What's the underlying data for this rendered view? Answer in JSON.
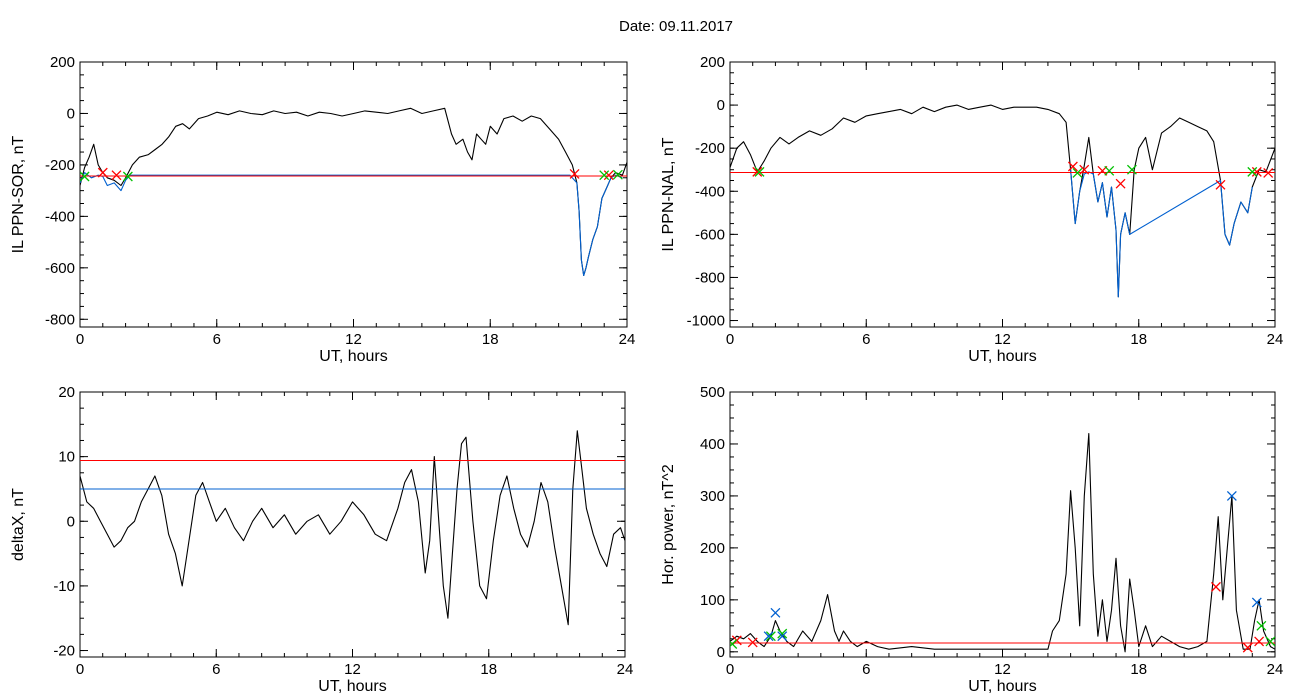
{
  "title": "Date:  09.11.2017",
  "chart_data": [
    {
      "type": "line",
      "xlabel": "UT, hours",
      "ylabel": "IL PPN-SOR, nT",
      "xlim": [
        0,
        24
      ],
      "ylim": [
        -830,
        200
      ],
      "xticks": [
        0,
        6,
        12,
        18,
        24
      ],
      "yticks": [
        200,
        0,
        -200,
        -400,
        -600,
        -800
      ],
      "grid": false,
      "series": [
        {
          "color": "#000000",
          "x": [
            0,
            0.2,
            0.4,
            0.6,
            0.8,
            1.0,
            1.2,
            1.5,
            1.8,
            2.0,
            2.3,
            2.6,
            3.0,
            3.3,
            3.6,
            3.9,
            4.2,
            4.5,
            4.8,
            5.2,
            5.6,
            6.0,
            6.5,
            7.0,
            7.5,
            8.0,
            8.5,
            9.0,
            9.5,
            10.0,
            10.5,
            11.0,
            11.5,
            12.0,
            12.5,
            13.0,
            13.5,
            14.0,
            14.5,
            15.0,
            15.5,
            16.0,
            16.3,
            16.5,
            16.8,
            17.0,
            17.2,
            17.4,
            17.6,
            17.8,
            18.0,
            18.3,
            18.6,
            19.0,
            19.4,
            19.8,
            20.2,
            20.6,
            21.0,
            21.3,
            21.6,
            21.8,
            21.9,
            22.0,
            22.1,
            22.2,
            22.3,
            22.5,
            22.7,
            22.9,
            23.1,
            23.3,
            23.5,
            23.8,
            24.0
          ],
          "y": [
            -280,
            -210,
            -170,
            -120,
            -200,
            -230,
            -250,
            -260,
            -280,
            -250,
            -200,
            -170,
            -160,
            -140,
            -120,
            -90,
            -50,
            -40,
            -60,
            -20,
            -10,
            5,
            -5,
            10,
            0,
            -5,
            10,
            0,
            5,
            -10,
            5,
            0,
            -10,
            0,
            10,
            5,
            0,
            10,
            20,
            0,
            10,
            20,
            -80,
            -120,
            -100,
            -150,
            -180,
            -80,
            -100,
            -120,
            -50,
            -80,
            -20,
            -10,
            -30,
            -10,
            -20,
            -60,
            -100,
            -150,
            -200,
            -270,
            -380,
            -570,
            -630,
            -600,
            -560,
            -490,
            -440,
            -330,
            -290,
            -250,
            -230,
            -240,
            -190
          ]
        },
        {
          "color": "#0060d0",
          "x": [
            0,
            0.2,
            0.5,
            0.8,
            1.0,
            1.2,
            1.5,
            1.8,
            2.0,
            2.2,
            21.5,
            21.8,
            21.9,
            22.0,
            22.1,
            22.2,
            22.3,
            22.5,
            22.7,
            22.9,
            23.1,
            23.3,
            23.5,
            23.8
          ],
          "y": [
            -270,
            -230,
            -250,
            -240,
            -245,
            -280,
            -270,
            -300,
            -260,
            -240,
            -240,
            -270,
            -380,
            -570,
            -630,
            -600,
            -560,
            -490,
            -440,
            -330,
            -290,
            -250,
            -240,
            -250
          ]
        },
        {
          "color": "#ff0000",
          "x": [
            0,
            24
          ],
          "y": [
            -243,
            -243
          ]
        }
      ],
      "markers": [
        {
          "color": "#ff0000",
          "x": [
            1.0,
            1.6,
            21.7,
            23.2
          ],
          "y": [
            -230,
            -240,
            -235,
            -240
          ]
        },
        {
          "color": "#00c000",
          "x": [
            0.2,
            2.1,
            23.0,
            23.6
          ],
          "y": [
            -245,
            -245,
            -240,
            -238
          ]
        }
      ]
    },
    {
      "type": "line",
      "xlabel": "UT, hours",
      "ylabel": "IL PPN-NAL, nT",
      "xlim": [
        0,
        24
      ],
      "ylim": [
        -1030,
        200
      ],
      "xticks": [
        0,
        6,
        12,
        18,
        24
      ],
      "yticks": [
        200,
        0,
        -200,
        -400,
        -600,
        -800,
        -1000
      ],
      "grid": false,
      "series": [
        {
          "color": "#000000",
          "x": [
            0,
            0.3,
            0.6,
            0.9,
            1.2,
            1.5,
            1.8,
            2.2,
            2.6,
            3.0,
            3.5,
            4.0,
            4.5,
            5.0,
            5.5,
            6.0,
            6.5,
            7.0,
            7.5,
            8.0,
            8.5,
            9.0,
            9.5,
            10.0,
            10.5,
            11.0,
            11.5,
            12.0,
            12.5,
            13.0,
            13.5,
            14.0,
            14.5,
            14.8,
            15.0,
            15.2,
            15.4,
            15.6,
            15.8,
            16.0,
            16.2,
            16.4,
            16.6,
            16.8,
            17.0,
            17.1,
            17.2,
            17.4,
            17.6,
            17.8,
            18.0,
            18.3,
            18.6,
            19.0,
            19.4,
            19.8,
            20.2,
            20.6,
            21.0,
            21.3,
            21.6,
            21.8,
            22.0,
            22.2,
            22.5,
            22.8,
            23.0,
            23.3,
            23.6,
            24.0
          ],
          "y": [
            -290,
            -200,
            -170,
            -230,
            -310,
            -260,
            -200,
            -150,
            -180,
            -150,
            -120,
            -140,
            -110,
            -60,
            -80,
            -50,
            -40,
            -30,
            -20,
            -40,
            -10,
            -30,
            -10,
            0,
            -20,
            -10,
            0,
            -20,
            -10,
            -10,
            -10,
            -20,
            -40,
            -80,
            -300,
            -550,
            -400,
            -280,
            -150,
            -320,
            -450,
            -360,
            -520,
            -380,
            -580,
            -890,
            -600,
            -500,
            -600,
            -300,
            -200,
            -150,
            -300,
            -130,
            -100,
            -60,
            -80,
            -100,
            -120,
            -170,
            -350,
            -600,
            -650,
            -550,
            -450,
            -500,
            -380,
            -300,
            -310,
            -200
          ]
        },
        {
          "color": "#0060d0",
          "x": [
            15.0,
            15.2,
            15.4,
            15.6,
            15.8,
            16.0,
            16.2,
            16.4,
            16.6,
            16.8,
            17.0,
            17.1,
            17.2,
            17.4,
            17.6,
            21.6,
            21.8,
            22.0,
            22.2,
            22.5,
            22.8,
            23.0
          ],
          "y": [
            -300,
            -550,
            -400,
            -320,
            -310,
            -320,
            -450,
            -360,
            -520,
            -380,
            -580,
            -890,
            -600,
            -500,
            -600,
            -350,
            -600,
            -650,
            -550,
            -450,
            -500,
            -380
          ]
        },
        {
          "color": "#ff0000",
          "x": [
            0,
            24
          ],
          "y": [
            -313,
            -313
          ]
        }
      ],
      "markers": [
        {
          "color": "#ff0000",
          "x": [
            1.2,
            15.1,
            15.6,
            16.4,
            17.2,
            21.6,
            23.2,
            23.7
          ],
          "y": [
            -310,
            -285,
            -300,
            -305,
            -365,
            -370,
            -310,
            -315
          ]
        },
        {
          "color": "#00c000",
          "x": [
            1.3,
            15.3,
            16.7,
            17.7,
            23.0
          ],
          "y": [
            -310,
            -315,
            -305,
            -300,
            -310
          ]
        }
      ]
    },
    {
      "type": "line",
      "xlabel": "UT, hours",
      "ylabel": "deltaX, nT",
      "xlim": [
        0,
        24
      ],
      "ylim": [
        -21,
        20
      ],
      "xticks": [
        0,
        6,
        12,
        18,
        24
      ],
      "yticks": [
        20,
        10,
        0,
        -10,
        -20
      ],
      "grid": false,
      "series": [
        {
          "color": "#000000",
          "x": [
            0,
            0.3,
            0.6,
            0.9,
            1.2,
            1.5,
            1.8,
            2.1,
            2.4,
            2.7,
            3.0,
            3.3,
            3.6,
            3.9,
            4.2,
            4.5,
            4.8,
            5.1,
            5.4,
            5.7,
            6.0,
            6.4,
            6.8,
            7.2,
            7.6,
            8.0,
            8.5,
            9.0,
            9.5,
            10.0,
            10.5,
            11.0,
            11.5,
            12.0,
            12.5,
            13.0,
            13.5,
            14.0,
            14.3,
            14.6,
            14.9,
            15.2,
            15.4,
            15.6,
            15.8,
            16.0,
            16.2,
            16.4,
            16.6,
            16.8,
            17.0,
            17.3,
            17.6,
            17.9,
            18.2,
            18.5,
            18.8,
            19.1,
            19.4,
            19.7,
            20.0,
            20.3,
            20.6,
            20.9,
            21.2,
            21.5,
            21.7,
            21.9,
            22.1,
            22.3,
            22.6,
            22.9,
            23.2,
            23.5,
            23.8,
            24.0
          ],
          "y": [
            7,
            3,
            2,
            0,
            -2,
            -4,
            -3,
            -1,
            0,
            3,
            5,
            7,
            4,
            -2,
            -5,
            -10,
            -3,
            4,
            6,
            3,
            0,
            2,
            -1,
            -3,
            0,
            2,
            -1,
            1,
            -2,
            0,
            1,
            -2,
            0,
            3,
            1,
            -2,
            -3,
            2,
            6,
            8,
            3,
            -8,
            -3,
            10,
            0,
            -10,
            -15,
            -5,
            5,
            12,
            13,
            0,
            -10,
            -12,
            -3,
            4,
            7,
            2,
            -2,
            -4,
            0,
            6,
            3,
            -4,
            -10,
            -16,
            5,
            14,
            8,
            2,
            -2,
            -5,
            -7,
            -2,
            -1,
            -3
          ]
        },
        {
          "color": "#ff0000",
          "x": [
            0,
            24
          ],
          "y": [
            9.4,
            9.4
          ]
        },
        {
          "color": "#0060d0",
          "x": [
            0,
            24
          ],
          "y": [
            5,
            5
          ]
        }
      ],
      "markers": []
    },
    {
      "type": "line",
      "xlabel": "UT, hours",
      "ylabel": "Hor. power, nT^2",
      "xlim": [
        0,
        24
      ],
      "ylim": [
        -10,
        500
      ],
      "xticks": [
        0,
        6,
        12,
        18,
        24
      ],
      "yticks": [
        500,
        400,
        300,
        200,
        100,
        0
      ],
      "grid": false,
      "series": [
        {
          "color": "#000000",
          "x": [
            0,
            0.3,
            0.6,
            0.9,
            1.2,
            1.5,
            1.8,
            2.0,
            2.2,
            2.5,
            2.8,
            3.2,
            3.6,
            4.0,
            4.3,
            4.6,
            4.8,
            5.0,
            5.3,
            5.6,
            6.0,
            6.5,
            7.0,
            8.0,
            9.0,
            10.0,
            11.0,
            12.0,
            13.0,
            14.0,
            14.2,
            14.5,
            14.8,
            15.0,
            15.2,
            15.4,
            15.6,
            15.8,
            16.0,
            16.2,
            16.4,
            16.6,
            16.8,
            17.0,
            17.2,
            17.4,
            17.6,
            17.8,
            18.0,
            18.3,
            18.6,
            19.0,
            19.4,
            19.8,
            20.2,
            20.6,
            21.0,
            21.3,
            21.5,
            21.7,
            21.9,
            22.1,
            22.3,
            22.6,
            22.9,
            23.1,
            23.3,
            23.5,
            23.8,
            24.0
          ],
          "y": [
            20,
            30,
            25,
            35,
            20,
            10,
            30,
            60,
            40,
            20,
            10,
            40,
            20,
            60,
            110,
            40,
            20,
            40,
            20,
            10,
            20,
            10,
            5,
            10,
            5,
            5,
            5,
            5,
            5,
            5,
            40,
            60,
            150,
            310,
            200,
            50,
            300,
            420,
            150,
            30,
            100,
            20,
            80,
            180,
            50,
            0,
            140,
            80,
            10,
            50,
            10,
            30,
            20,
            10,
            5,
            10,
            20,
            150,
            260,
            100,
            200,
            300,
            80,
            5,
            5,
            60,
            100,
            40,
            10,
            5
          ]
        },
        {
          "color": "#ff0000",
          "x": [
            0,
            24
          ],
          "y": [
            17,
            17
          ]
        }
      ],
      "markers": [
        {
          "color": "#ff0000",
          "x": [
            0.3,
            1.0,
            21.4,
            22.8,
            23.3
          ],
          "y": [
            22,
            18,
            125,
            8,
            20
          ]
        },
        {
          "color": "#00c000",
          "x": [
            0.1,
            1.8,
            2.3,
            23.4,
            23.8
          ],
          "y": [
            15,
            30,
            35,
            50,
            20
          ]
        },
        {
          "color": "#0060d0",
          "x": [
            1.7,
            2.0,
            2.3,
            22.1,
            23.2
          ],
          "y": [
            30,
            75,
            30,
            300,
            95
          ]
        }
      ]
    }
  ]
}
